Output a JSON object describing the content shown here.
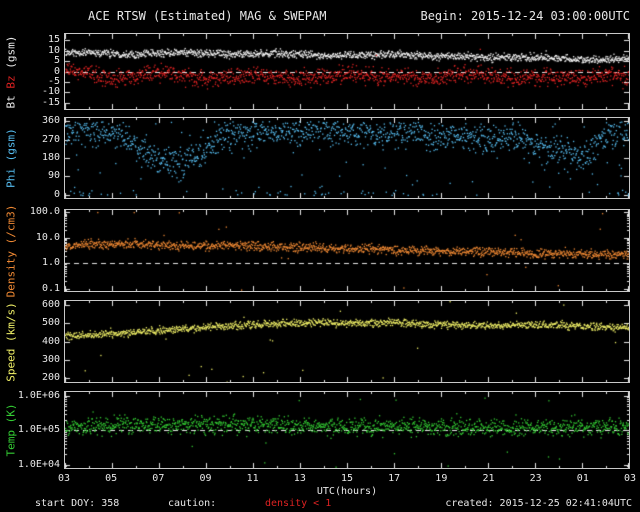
{
  "header": {
    "title_left": "ACE RTSW (Estimated) MAG & SWEPAM",
    "title_right": "Begin: 2015-12-24 03:00:00UTC"
  },
  "footer": {
    "start": "start DOY: 358",
    "caution_label": "caution:",
    "caution_value": "density < 1",
    "caution_color": "#dd2222",
    "created": "created: 2015-12-25 02:41:04UTC"
  },
  "colors": {
    "background": "#000000",
    "frame": "#c8c8c8",
    "text": "#e8e8e8",
    "dashed_line": "#e8e8e8"
  },
  "chart_data": {
    "type": "scatter",
    "title": "ACE RTSW (Estimated) MAG & SWEPAM",
    "x": {
      "label": "UTC(hours)",
      "range": [
        3,
        27
      ],
      "tick_hours": [
        3,
        5,
        7,
        9,
        11,
        13,
        15,
        17,
        19,
        21,
        23,
        25,
        27
      ],
      "tick_labels": [
        "03",
        "05",
        "07",
        "09",
        "11",
        "13",
        "15",
        "17",
        "19",
        "21",
        "23",
        "01",
        "03"
      ]
    },
    "trend_hours": [
      3,
      4,
      5,
      6,
      7,
      8,
      9,
      10,
      11,
      12,
      13,
      14,
      15,
      16,
      17,
      18,
      19,
      20,
      21,
      22,
      23,
      24,
      25,
      26,
      27
    ],
    "panels": [
      {
        "id": "bt-bz",
        "scale": "linear",
        "ylim": [
          -18,
          18
        ],
        "yticks": [
          {
            "v": 15,
            "label": "15"
          },
          {
            "v": 10,
            "label": "10"
          },
          {
            "v": 5,
            "label": "5"
          },
          {
            "v": 0,
            "label": "0"
          },
          {
            "v": -5,
            "label": "-5"
          },
          {
            "v": -10,
            "label": "-10"
          },
          {
            "v": -15,
            "label": "-15"
          }
        ],
        "dashed_at": 0,
        "ylabel_parts": [
          {
            "text": "Bt",
            "color": "#e8e8e8"
          },
          {
            "text": "Bz",
            "color": "#dd2222"
          },
          {
            "text": "(gsm)",
            "color": "#e8e8e8"
          }
        ],
        "series": [
          {
            "name": "Bt",
            "color": "#f5f5f5",
            "noise": 0.9,
            "outlier_fraction": 0.003,
            "trend": [
              9,
              9.5,
              9,
              8.5,
              9,
              9.5,
              9,
              8.5,
              8.5,
              9,
              8.5,
              8,
              8,
              8,
              8.5,
              8,
              7.5,
              7.5,
              7,
              7,
              7,
              6.5,
              6,
              6,
              6.5
            ]
          },
          {
            "name": "Bz",
            "color": "#dd2222",
            "noise": 2.0,
            "outlier_fraction": 0.004,
            "trend": [
              1,
              -1,
              -3,
              -2,
              0,
              -2,
              -4,
              -3,
              -1,
              -2,
              -3,
              -2,
              -1,
              -2,
              -2,
              -3,
              -2,
              -1,
              -2,
              -3,
              -2,
              -2,
              -3,
              -1,
              -2
            ]
          }
        ]
      },
      {
        "id": "phi",
        "scale": "linear",
        "ylim": [
          -15,
          375
        ],
        "yticks": [
          {
            "v": 360,
            "label": "360"
          },
          {
            "v": 270,
            "label": "270"
          },
          {
            "v": 180,
            "label": "180"
          },
          {
            "v": 90,
            "label": "90"
          },
          {
            "v": 0,
            "label": "0"
          }
        ],
        "dashed_at": null,
        "ylabel_parts": [
          {
            "text": "Phi",
            "color": "#55bbee"
          },
          {
            "text": "(gsm)",
            "color": "#55bbee"
          }
        ],
        "series": [
          {
            "name": "Phi",
            "color": "#55bbee",
            "noise": 35,
            "outlier_fraction": 0.06,
            "wrap": true,
            "trend": [
              320,
              320,
              300,
              250,
              170,
              160,
              230,
              300,
              310,
              315,
              312,
              315,
              318,
              300,
              305,
              308,
              290,
              300,
              275,
              285,
              250,
              220,
              180,
              300,
              330
            ]
          }
        ]
      },
      {
        "id": "density",
        "scale": "log",
        "ylim": [
          0.08,
          125
        ],
        "yticks": [
          {
            "v": 100,
            "label": "100.0"
          },
          {
            "v": 10,
            "label": "10.0"
          },
          {
            "v": 1,
            "label": "1.0"
          },
          {
            "v": 0.1,
            "label": "0.1"
          }
        ],
        "dashed_at": 1.0,
        "ylabel_parts": [
          {
            "text": "Density",
            "color": "#ee8833"
          },
          {
            "text": "(/cm3)",
            "color": "#ee8833"
          }
        ],
        "series": [
          {
            "name": "Density",
            "color": "#ee8833",
            "noise": 0.09,
            "outlier_fraction": 0.015,
            "trend": [
              5,
              5.5,
              6,
              6,
              5.5,
              5,
              5.2,
              5.5,
              5,
              4.6,
              4.4,
              4.2,
              4,
              4,
              3.6,
              3.4,
              3.2,
              3,
              3,
              2.8,
              2.6,
              2.5,
              2.4,
              2.3,
              2.2
            ]
          }
        ]
      },
      {
        "id": "speed",
        "scale": "linear",
        "ylim": [
          180,
          620
        ],
        "yticks": [
          {
            "v": 600,
            "label": "600"
          },
          {
            "v": 500,
            "label": "500"
          },
          {
            "v": 400,
            "label": "400"
          },
          {
            "v": 300,
            "label": "300"
          },
          {
            "v": 200,
            "label": "200"
          }
        ],
        "dashed_at": null,
        "ylabel_parts": [
          {
            "text": "Speed",
            "color": "#eeee66"
          },
          {
            "text": "(km/s)",
            "color": "#eeee66"
          }
        ],
        "series": [
          {
            "name": "Speed",
            "color": "#eeee66",
            "noise": 10,
            "outlier_fraction": 0.018,
            "trend": [
              430,
              438,
              445,
              452,
              462,
              472,
              480,
              488,
              494,
              500,
              505,
              508,
              500,
              502,
              506,
              501,
              496,
              491,
              487,
              491,
              494,
              490,
              486,
              481,
              478
            ]
          }
        ]
      },
      {
        "id": "temp",
        "scale": "log",
        "ylim": [
          8000,
          1300000
        ],
        "yticks": [
          {
            "v": 1000000,
            "label": "1.0E+06"
          },
          {
            "v": 100000,
            "label": "1.0E+05"
          },
          {
            "v": 10000,
            "label": "1.0E+04"
          }
        ],
        "dashed_at": 100000,
        "ylabel_parts": [
          {
            "text": "Temp",
            "color": "#33cc33"
          },
          {
            "text": "(K)",
            "color": "#33cc33"
          }
        ],
        "series": [
          {
            "name": "Temp",
            "color": "#33cc33",
            "noise": 0.12,
            "outlier_fraction": 0.02,
            "trend": [
              120000,
              135000,
              150000,
              160000,
              150000,
              145000,
              150000,
              155000,
              150000,
              140000,
              138000,
              130000,
              128000,
              125000,
              130000,
              135000,
              130000,
              125000,
              128000,
              122000,
              120000,
              128000,
              122000,
              130000,
              135000
            ]
          }
        ]
      }
    ]
  }
}
